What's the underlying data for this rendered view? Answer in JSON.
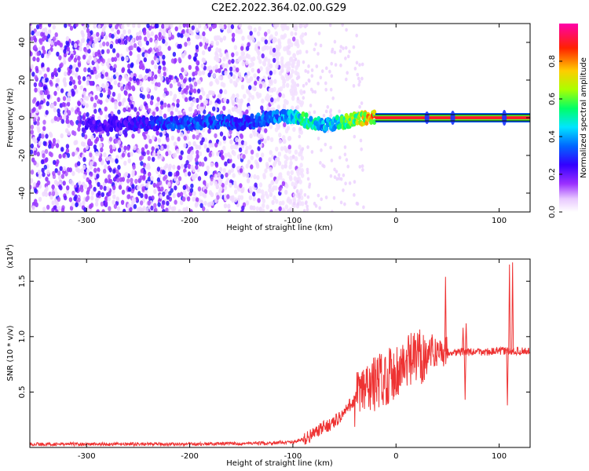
{
  "title": "C2E2.2022.364.02.00.G29",
  "colors": {
    "snr_line": "#ee3333",
    "axis": "#000000",
    "colormap": [
      "#ffffff",
      "#e8c8ff",
      "#9b30ff",
      "#3300ff",
      "#0066ff",
      "#00e5ff",
      "#00ff66",
      "#aaff00",
      "#ffcc00",
      "#ff2200",
      "#ff00aa"
    ]
  },
  "chart_data": [
    {
      "type": "heatmap",
      "xlabel": "Height of straight line (km)",
      "ylabel": "Frequency (Hz)",
      "xlim": [
        -355,
        130
      ],
      "ylim": [
        -50,
        50
      ],
      "x_ticks": [
        -300,
        -200,
        -100,
        0,
        100
      ],
      "x_tick_labels": [
        "-300",
        "-200",
        "-100",
        "0",
        "100"
      ],
      "y_ticks": [
        -40,
        -20,
        0,
        20,
        40
      ],
      "y_tick_labels": [
        "-40",
        "-20",
        "0",
        "20",
        "40"
      ],
      "grid": false,
      "colorbar": {
        "label": "Normalized spectral amplitude",
        "range": [
          0,
          1
        ],
        "ticks": [
          0.0,
          0.2,
          0.4,
          0.6,
          0.8
        ],
        "tick_labels": [
          "0.0",
          "0.2",
          "0.4",
          "0.6",
          "0.8"
        ]
      },
      "noise_region_x": [
        -355,
        -100
      ],
      "center_line_y": 0,
      "signal_track": [
        {
          "x": -300,
          "y": -4,
          "amp": 0.25
        },
        {
          "x": -260,
          "y": -3,
          "amp": 0.25
        },
        {
          "x": -210,
          "y": -3,
          "amp": 0.35
        },
        {
          "x": -175,
          "y": -2,
          "amp": 0.35
        },
        {
          "x": -150,
          "y": -3,
          "amp": 0.3
        },
        {
          "x": -120,
          "y": 0,
          "amp": 0.4
        },
        {
          "x": -100,
          "y": 1,
          "amp": 0.45
        },
        {
          "x": -90,
          "y": -1,
          "amp": 0.55
        },
        {
          "x": -80,
          "y": -3,
          "amp": 0.5
        },
        {
          "x": -70,
          "y": -4,
          "amp": 0.45
        },
        {
          "x": -60,
          "y": -3,
          "amp": 0.5
        },
        {
          "x": -50,
          "y": -2,
          "amp": 0.6
        },
        {
          "x": -40,
          "y": -1,
          "amp": 0.65
        },
        {
          "x": -30,
          "y": 0,
          "amp": 0.75
        },
        {
          "x": -20,
          "y": 0,
          "amp": 0.8
        },
        {
          "x": 0,
          "y": 0,
          "amp": 0.85
        },
        {
          "x": 30,
          "y": 0,
          "amp": 0.9
        },
        {
          "x": 55,
          "y": 0,
          "amp": 0.9
        },
        {
          "x": 80,
          "y": 0,
          "amp": 0.92
        },
        {
          "x": 105,
          "y": 0,
          "amp": 0.95
        },
        {
          "x": 130,
          "y": 0,
          "amp": 0.95
        }
      ],
      "spot_features": [
        {
          "x": 30,
          "spread": 2
        },
        {
          "x": 55,
          "spread": 3
        },
        {
          "x": 105,
          "spread": 4
        }
      ]
    },
    {
      "type": "line",
      "xlabel": "Height of straight line (km)",
      "ylabel": "SNR (10 * v/v)",
      "y_multiplier_label": "(x10",
      "y_multiplier_exp": "4",
      "y_multiplier_close": ")",
      "xlim": [
        -355,
        130
      ],
      "ylim": [
        0,
        17000
      ],
      "x_ticks": [
        -300,
        -200,
        -100,
        0,
        100
      ],
      "x_tick_labels": [
        "-300",
        "-200",
        "-100",
        "0",
        "100"
      ],
      "y_ticks": [
        5000,
        10000,
        15000
      ],
      "y_tick_labels": [
        "0.5",
        "1.0",
        "1.5"
      ],
      "grid": false,
      "series": [
        {
          "x": [
            -355,
            -300,
            -250,
            -200,
            -150,
            -120,
            -100,
            -90,
            -80,
            -70,
            -60,
            -55,
            -50,
            -45,
            -40,
            -35,
            -30,
            -25,
            -20,
            -15,
            -10,
            -5,
            0,
            5,
            10,
            15,
            20,
            25,
            30,
            35,
            40,
            45,
            50,
            55,
            60,
            65,
            70,
            75,
            80,
            85,
            90,
            95,
            100,
            105,
            108,
            110,
            112,
            115,
            120,
            125,
            130
          ],
          "y": [
            300,
            300,
            300,
            300,
            350,
            400,
            500,
            700,
            1200,
            1800,
            2300,
            2700,
            3100,
            3800,
            4300,
            4800,
            5200,
            5500,
            5800,
            6100,
            6400,
            6600,
            6900,
            7200,
            7500,
            7800,
            8100,
            8300,
            8500,
            8600,
            8700,
            8700,
            8650,
            8600,
            8600,
            8650,
            8600,
            8600,
            8600,
            8600,
            8650,
            8650,
            8700,
            8700,
            8700,
            8600,
            8650,
            8700,
            8700,
            8700,
            8700
          ]
        }
      ],
      "spikes": [
        {
          "x": -60,
          "y": 1800
        },
        {
          "x": 35,
          "y": 10200
        },
        {
          "x": 48,
          "y": 15400
        },
        {
          "x": 65,
          "y": 10800
        },
        {
          "x": 67,
          "y": 4300
        },
        {
          "x": 68,
          "y": 11200
        },
        {
          "x": 108,
          "y": 3800
        },
        {
          "x": 110,
          "y": 16500
        },
        {
          "x": 113,
          "y": 16700
        }
      ]
    }
  ]
}
